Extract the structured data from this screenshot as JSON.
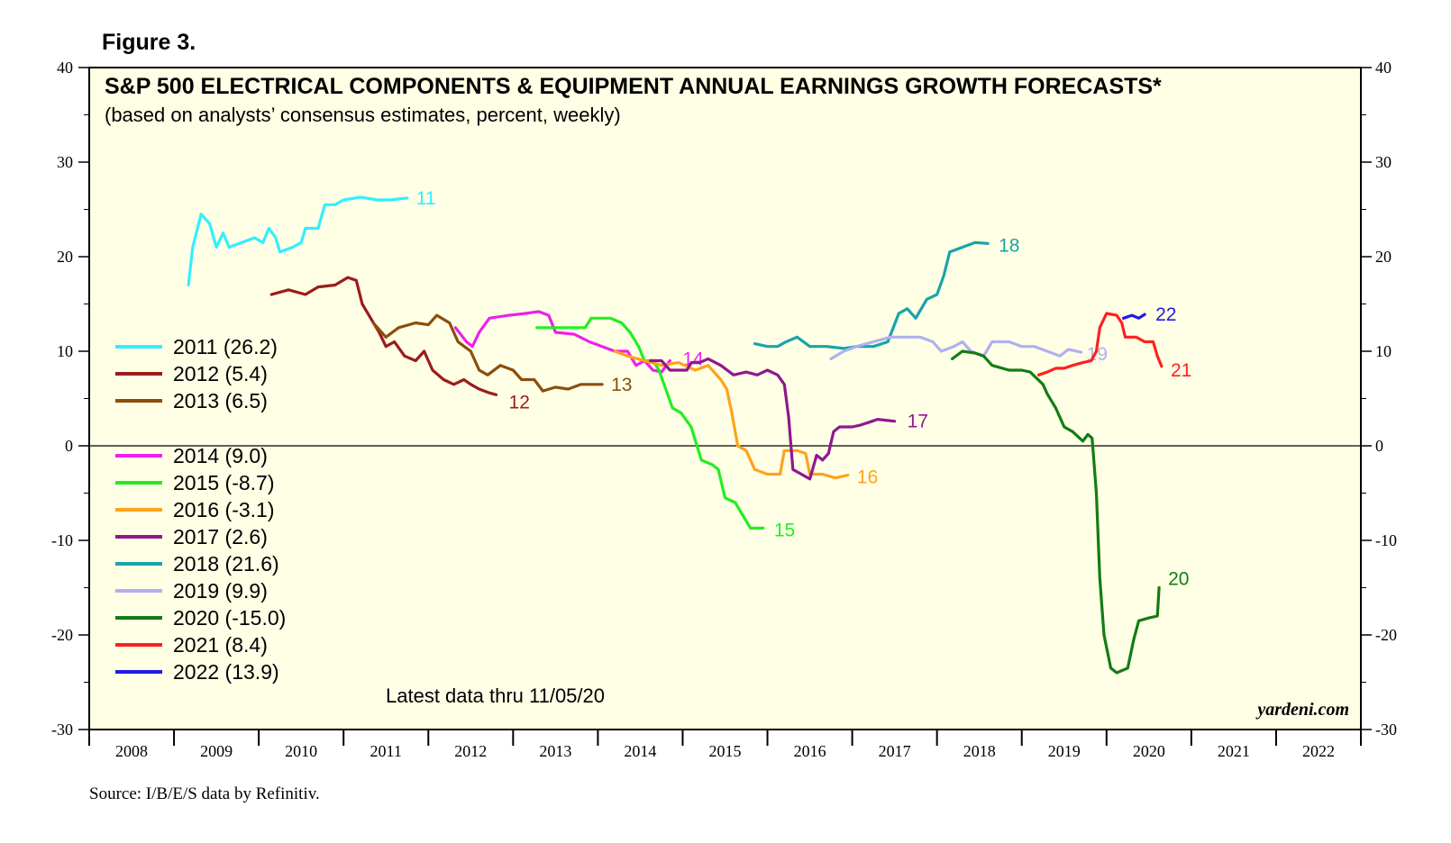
{
  "figure_label": "Figure 3.",
  "source": "Source: I/B/E/S data by Refinitiv.",
  "chart_data": {
    "type": "line",
    "title": "S&P 500 ELECTRICAL COMPONENTS & EQUIPMENT ANNUAL EARNINGS GROWTH FORECASTS*",
    "subtitle": "(based on analysts’ consensus estimates, percent, weekly)",
    "note": "Latest data thru 11/05/20",
    "brand": "yardeni.com",
    "ylim": [
      -30,
      40
    ],
    "y_ticks": [
      "-30",
      "-20",
      "-10",
      "0",
      "10",
      "20",
      "30",
      "40"
    ],
    "y_tick_values": [
      -30,
      -20,
      -10,
      0,
      10,
      20,
      30,
      40
    ],
    "x_range": [
      2008,
      2023
    ],
    "x_tick_labels": [
      "2008",
      "2009",
      "2010",
      "2011",
      "2012",
      "2013",
      "2014",
      "2015",
      "2016",
      "2017",
      "2018",
      "2019",
      "2020",
      "2021",
      "2022"
    ],
    "zero_line": true,
    "grid": false,
    "legend_position": "left",
    "series": [
      {
        "name": "2011",
        "legend": "2011 (26.2)",
        "end_label": "11",
        "color": "#33eeff",
        "points": [
          [
            2009.17,
            17
          ],
          [
            2009.22,
            21
          ],
          [
            2009.32,
            24.5
          ],
          [
            2009.42,
            23.5
          ],
          [
            2009.5,
            21
          ],
          [
            2009.58,
            22.5
          ],
          [
            2009.65,
            21
          ],
          [
            2009.8,
            21.5
          ],
          [
            2009.95,
            22
          ],
          [
            2010.05,
            21.5
          ],
          [
            2010.12,
            23
          ],
          [
            2010.2,
            22
          ],
          [
            2010.25,
            20.5
          ],
          [
            2010.4,
            21
          ],
          [
            2010.5,
            21.5
          ],
          [
            2010.55,
            23
          ],
          [
            2010.7,
            23
          ],
          [
            2010.78,
            25.5
          ],
          [
            2010.9,
            25.5
          ],
          [
            2011.0,
            26
          ],
          [
            2011.2,
            26.3
          ],
          [
            2011.4,
            26
          ],
          [
            2011.55,
            26
          ],
          [
            2011.75,
            26.2
          ]
        ]
      },
      {
        "name": "2012",
        "legend": "2012 (5.4)",
        "end_label": "12",
        "color": "#9b1c1c",
        "points": [
          [
            2010.15,
            16
          ],
          [
            2010.35,
            16.5
          ],
          [
            2010.55,
            16
          ],
          [
            2010.7,
            16.8
          ],
          [
            2010.9,
            17
          ],
          [
            2011.05,
            17.8
          ],
          [
            2011.15,
            17.5
          ],
          [
            2011.22,
            15
          ],
          [
            2011.32,
            13.5
          ],
          [
            2011.42,
            12
          ],
          [
            2011.5,
            10.5
          ],
          [
            2011.6,
            11
          ],
          [
            2011.72,
            9.5
          ],
          [
            2011.85,
            9
          ],
          [
            2011.95,
            10
          ],
          [
            2012.05,
            8
          ],
          [
            2012.18,
            7
          ],
          [
            2012.3,
            6.5
          ],
          [
            2012.42,
            7
          ],
          [
            2012.5,
            6.5
          ],
          [
            2012.6,
            6
          ],
          [
            2012.72,
            5.6
          ],
          [
            2012.8,
            5.4
          ]
        ]
      },
      {
        "name": "2013",
        "legend": "2013 (6.5)",
        "end_label": "13",
        "color": "#8b4e0e",
        "points": [
          [
            2011.35,
            13
          ],
          [
            2011.5,
            11.5
          ],
          [
            2011.65,
            12.5
          ],
          [
            2011.85,
            13
          ],
          [
            2012.0,
            12.8
          ],
          [
            2012.1,
            13.8
          ],
          [
            2012.25,
            13
          ],
          [
            2012.35,
            11
          ],
          [
            2012.5,
            10
          ],
          [
            2012.6,
            8
          ],
          [
            2012.7,
            7.5
          ],
          [
            2012.85,
            8.5
          ],
          [
            2013.0,
            8
          ],
          [
            2013.1,
            7
          ],
          [
            2013.25,
            7
          ],
          [
            2013.35,
            5.8
          ],
          [
            2013.5,
            6.2
          ],
          [
            2013.65,
            6
          ],
          [
            2013.8,
            6.5
          ],
          [
            2014.05,
            6.5
          ]
        ]
      },
      {
        "name": "2014",
        "legend": "2014 (9.0)",
        "end_label": "14",
        "color": "#ee1fee",
        "points": [
          [
            2012.32,
            12.5
          ],
          [
            2012.45,
            11
          ],
          [
            2012.52,
            10.5
          ],
          [
            2012.6,
            12
          ],
          [
            2012.72,
            13.5
          ],
          [
            2012.95,
            13.8
          ],
          [
            2013.15,
            14
          ],
          [
            2013.3,
            14.2
          ],
          [
            2013.42,
            13.8
          ],
          [
            2013.5,
            12
          ],
          [
            2013.72,
            11.8
          ],
          [
            2013.9,
            11
          ],
          [
            2014.05,
            10.5
          ],
          [
            2014.2,
            10
          ],
          [
            2014.35,
            10
          ],
          [
            2014.45,
            8.5
          ],
          [
            2014.55,
            9
          ],
          [
            2014.65,
            8
          ],
          [
            2014.75,
            7.8
          ],
          [
            2014.85,
            9
          ]
        ]
      },
      {
        "name": "2015",
        "legend": "2015 (-8.7)",
        "end_label": "15",
        "color": "#22ee22",
        "points": [
          [
            2013.28,
            12.5
          ],
          [
            2013.5,
            12.5
          ],
          [
            2013.7,
            12.5
          ],
          [
            2013.85,
            12.5
          ],
          [
            2013.92,
            13.5
          ],
          [
            2014.15,
            13.5
          ],
          [
            2014.28,
            13
          ],
          [
            2014.38,
            12
          ],
          [
            2014.48,
            10.5
          ],
          [
            2014.55,
            9
          ],
          [
            2014.65,
            9
          ],
          [
            2014.72,
            8
          ],
          [
            2014.8,
            6
          ],
          [
            2014.88,
            4
          ],
          [
            2014.98,
            3.5
          ],
          [
            2015.1,
            2
          ],
          [
            2015.22,
            -1.5
          ],
          [
            2015.35,
            -2
          ],
          [
            2015.42,
            -2.5
          ],
          [
            2015.5,
            -5.5
          ],
          [
            2015.62,
            -6
          ],
          [
            2015.72,
            -7.5
          ],
          [
            2015.8,
            -8.7
          ],
          [
            2015.95,
            -8.7
          ]
        ]
      },
      {
        "name": "2016",
        "legend": "2016 (-3.1)",
        "end_label": "16",
        "color": "#ffa21c",
        "points": [
          [
            2014.2,
            10
          ],
          [
            2014.35,
            9.5
          ],
          [
            2014.55,
            9
          ],
          [
            2014.75,
            8.5
          ],
          [
            2014.95,
            8.8
          ],
          [
            2015.15,
            8
          ],
          [
            2015.3,
            8.5
          ],
          [
            2015.45,
            7
          ],
          [
            2015.52,
            6
          ],
          [
            2015.58,
            3.5
          ],
          [
            2015.65,
            0
          ],
          [
            2015.75,
            -0.5
          ],
          [
            2015.85,
            -2.5
          ],
          [
            2016.0,
            -3
          ],
          [
            2016.15,
            -3
          ],
          [
            2016.2,
            -0.5
          ],
          [
            2016.35,
            -0.5
          ],
          [
            2016.45,
            -0.8
          ],
          [
            2016.5,
            -3
          ],
          [
            2016.65,
            -3
          ],
          [
            2016.8,
            -3.4
          ],
          [
            2016.95,
            -3.1
          ]
        ]
      },
      {
        "name": "2017",
        "legend": "2017 (2.6)",
        "end_label": "17",
        "color": "#8e188e",
        "points": [
          [
            2014.62,
            9
          ],
          [
            2014.75,
            9
          ],
          [
            2014.85,
            8
          ],
          [
            2014.92,
            8
          ],
          [
            2015.05,
            8
          ],
          [
            2015.1,
            8.8
          ],
          [
            2015.2,
            8.8
          ],
          [
            2015.3,
            9.2
          ],
          [
            2015.45,
            8.5
          ],
          [
            2015.6,
            7.5
          ],
          [
            2015.75,
            7.8
          ],
          [
            2015.88,
            7.5
          ],
          [
            2016.0,
            8
          ],
          [
            2016.12,
            7.5
          ],
          [
            2016.2,
            6.5
          ],
          [
            2016.25,
            3
          ],
          [
            2016.3,
            -2.5
          ],
          [
            2016.4,
            -3
          ],
          [
            2016.5,
            -3.5
          ],
          [
            2016.58,
            -1
          ],
          [
            2016.65,
            -1.5
          ],
          [
            2016.72,
            -0.8
          ],
          [
            2016.78,
            1.5
          ],
          [
            2016.85,
            2
          ],
          [
            2017.0,
            2
          ],
          [
            2017.1,
            2.2
          ],
          [
            2017.2,
            2.5
          ],
          [
            2017.3,
            2.8
          ],
          [
            2017.5,
            2.6
          ]
        ]
      },
      {
        "name": "2018",
        "legend": "2018 (21.6)",
        "end_label": "18",
        "color": "#1aa3a8",
        "points": [
          [
            2015.85,
            10.8
          ],
          [
            2016.0,
            10.5
          ],
          [
            2016.12,
            10.5
          ],
          [
            2016.22,
            11
          ],
          [
            2016.35,
            11.5
          ],
          [
            2016.5,
            10.5
          ],
          [
            2016.7,
            10.5
          ],
          [
            2016.9,
            10.3
          ],
          [
            2017.05,
            10.5
          ],
          [
            2017.25,
            10.5
          ],
          [
            2017.42,
            11
          ],
          [
            2017.55,
            14
          ],
          [
            2017.65,
            14.5
          ],
          [
            2017.75,
            13.5
          ],
          [
            2017.88,
            15.5
          ],
          [
            2018.0,
            16
          ],
          [
            2018.08,
            18
          ],
          [
            2018.15,
            20.5
          ],
          [
            2018.3,
            21
          ],
          [
            2018.45,
            21.5
          ],
          [
            2018.6,
            21.4
          ]
        ]
      },
      {
        "name": "2019",
        "legend": "2019 (9.9)",
        "end_label": "19",
        "color": "#b0b0f0",
        "points": [
          [
            2016.75,
            9.2
          ],
          [
            2016.9,
            10
          ],
          [
            2017.05,
            10.5
          ],
          [
            2017.25,
            11
          ],
          [
            2017.45,
            11.5
          ],
          [
            2017.6,
            11.5
          ],
          [
            2017.8,
            11.5
          ],
          [
            2017.95,
            11
          ],
          [
            2018.05,
            10
          ],
          [
            2018.2,
            10.5
          ],
          [
            2018.3,
            11
          ],
          [
            2018.4,
            10
          ],
          [
            2018.55,
            9.5
          ],
          [
            2018.65,
            11
          ],
          [
            2018.85,
            11
          ],
          [
            2019.0,
            10.5
          ],
          [
            2019.15,
            10.5
          ],
          [
            2019.3,
            10
          ],
          [
            2019.45,
            9.5
          ],
          [
            2019.55,
            10.2
          ],
          [
            2019.7,
            9.9
          ]
        ]
      },
      {
        "name": "2020",
        "legend": "2020 (-15.0)",
        "end_label": "20",
        "color": "#137c13",
        "points": [
          [
            2018.18,
            9.2
          ],
          [
            2018.3,
            10
          ],
          [
            2018.45,
            9.8
          ],
          [
            2018.55,
            9.5
          ],
          [
            2018.65,
            8.5
          ],
          [
            2018.85,
            8
          ],
          [
            2019.0,
            8
          ],
          [
            2019.1,
            7.8
          ],
          [
            2019.25,
            6.5
          ],
          [
            2019.3,
            5.5
          ],
          [
            2019.4,
            4
          ],
          [
            2019.5,
            2
          ],
          [
            2019.6,
            1.5
          ],
          [
            2019.72,
            0.5
          ],
          [
            2019.78,
            1.2
          ],
          [
            2019.83,
            0.8
          ],
          [
            2019.88,
            -5
          ],
          [
            2019.92,
            -14
          ],
          [
            2019.97,
            -20
          ],
          [
            2020.05,
            -23.5
          ],
          [
            2020.12,
            -24
          ],
          [
            2020.25,
            -23.5
          ],
          [
            2020.32,
            -20.5
          ],
          [
            2020.38,
            -18.5
          ],
          [
            2020.5,
            -18.2
          ],
          [
            2020.6,
            -18
          ],
          [
            2020.62,
            -15
          ]
        ]
      },
      {
        "name": "2021",
        "legend": "2021 (8.4)",
        "end_label": "21",
        "color": "#ff1f1f",
        "points": [
          [
            2019.2,
            7.5
          ],
          [
            2019.3,
            7.8
          ],
          [
            2019.4,
            8.2
          ],
          [
            2019.5,
            8.2
          ],
          [
            2019.6,
            8.5
          ],
          [
            2019.72,
            8.8
          ],
          [
            2019.82,
            9
          ],
          [
            2019.88,
            10
          ],
          [
            2019.92,
            12.5
          ],
          [
            2020.0,
            14
          ],
          [
            2020.12,
            13.8
          ],
          [
            2020.18,
            13
          ],
          [
            2020.22,
            11.5
          ],
          [
            2020.35,
            11.5
          ],
          [
            2020.45,
            11
          ],
          [
            2020.55,
            11
          ],
          [
            2020.6,
            9.5
          ],
          [
            2020.65,
            8.4
          ]
        ]
      },
      {
        "name": "2022",
        "legend": "2022 (13.9)",
        "end_label": "22",
        "color": "#1c1ce6",
        "points": [
          [
            2020.2,
            13.5
          ],
          [
            2020.3,
            13.8
          ],
          [
            2020.38,
            13.5
          ],
          [
            2020.45,
            13.9
          ]
        ]
      }
    ]
  }
}
